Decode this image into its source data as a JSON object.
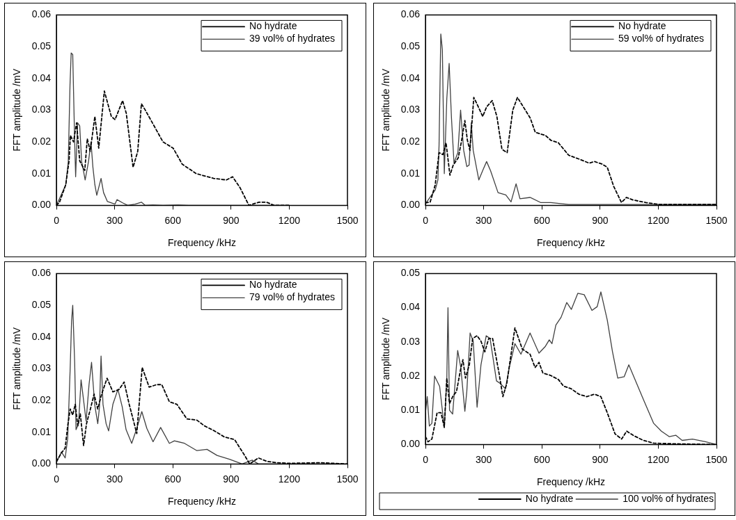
{
  "chart_data": [
    {
      "type": "line",
      "xlabel": "Frequency /kHz",
      "ylabel": "FFT amplitude /mV",
      "xlim": [
        0,
        1500
      ],
      "xticks": [
        0,
        300,
        600,
        900,
        1200,
        1500
      ],
      "ylim": [
        0,
        0.06
      ],
      "yticks": [
        {
          "value": 0,
          "label": "0.00"
        },
        {
          "value": 0.01,
          "label": "0.01"
        },
        {
          "value": 0.02,
          "label": "0.02"
        },
        {
          "value": 0.03,
          "label": "0.03"
        },
        {
          "value": 0.04,
          "label": "0.04"
        },
        {
          "value": 0.05,
          "label": "0.05"
        },
        {
          "value": 0.06,
          "label": "0.06"
        }
      ],
      "grid": false,
      "legend": "top right",
      "marker": "none",
      "series": [
        {
          "name": "No hydrate",
          "color": "#000000",
          "line_style": "dashed",
          "x": [
            0,
            16,
            48,
            65,
            72,
            88,
            104,
            120,
            146,
            159,
            174,
            198,
            218,
            247,
            283,
            302,
            341,
            360,
            395,
            419,
            438,
            458,
            549,
            602,
            648,
            720,
            810,
            876,
            908,
            947,
            992,
            1044,
            1083,
            1122,
            1200
          ],
          "values": [
            0,
            0.001,
            0.0065,
            0.014,
            0.022,
            0.02,
            0.026,
            0.014,
            0.011,
            0.021,
            0.017,
            0.028,
            0.018,
            0.036,
            0.028,
            0.027,
            0.033,
            0.029,
            0.012,
            0.017,
            0.032,
            0.03,
            0.02,
            0.018,
            0.013,
            0.01,
            0.0085,
            0.008,
            0.009,
            0.0055,
            0,
            0.001,
            0.001,
            0,
            0
          ]
        },
        {
          "name": "39 vol% of hydrates",
          "color": "#404040",
          "line_style": "solid",
          "x": [
            0,
            48,
            61,
            70,
            76,
            84,
            94,
            99,
            109,
            120,
            130,
            139,
            148,
            165,
            178,
            188,
            198,
            208,
            230,
            243,
            263,
            302,
            312,
            341,
            367,
            406,
            438,
            458,
            497,
            549,
            628,
            680,
            1200
          ],
          "values": [
            0,
            0.0065,
            0.0137,
            0.038,
            0.048,
            0.0475,
            0.02,
            0.009,
            0.026,
            0.025,
            0.0137,
            0.011,
            0.008,
            0.0137,
            0.02,
            0.012,
            0.0065,
            0.0032,
            0.0085,
            0.004,
            0.0012,
            0.0004,
            0.0018,
            0.0008,
            0,
            0.0004,
            0.001,
            0,
            0.0001,
            0,
            0.0001,
            0,
            0
          ]
        }
      ]
    },
    {
      "type": "line",
      "xlabel": "Frequency /kHz",
      "ylabel": "FFT amplitude /mV",
      "xlim": [
        0,
        1500
      ],
      "xticks": [
        0,
        300,
        600,
        900,
        1200,
        1500
      ],
      "ylim": [
        0,
        0.06
      ],
      "yticks": [
        {
          "value": 0,
          "label": "0.00"
        },
        {
          "value": 0.01,
          "label": "0.01"
        },
        {
          "value": 0.02,
          "label": "0.02"
        },
        {
          "value": 0.03,
          "label": "0.03"
        },
        {
          "value": 0.04,
          "label": "0.04"
        },
        {
          "value": 0.05,
          "label": "0.05"
        },
        {
          "value": 0.06,
          "label": "0.06"
        }
      ],
      "grid": false,
      "legend": "top right",
      "marker": "none",
      "series": [
        {
          "name": "No hydrate",
          "color": "#000000",
          "line_style": "dashed",
          "x": [
            0,
            24,
            50,
            70,
            90,
            106,
            126,
            143,
            169,
            185,
            203,
            216,
            229,
            249,
            265,
            295,
            315,
            344,
            368,
            394,
            421,
            450,
            474,
            540,
            566,
            619,
            646,
            685,
            738,
            791,
            844,
            871,
            910,
            937,
            970,
            1010,
            1036,
            1069,
            1136,
            1202,
            1500
          ],
          "values": [
            0.0008,
            0.001,
            0.0064,
            0.0166,
            0.016,
            0.0197,
            0.0095,
            0.0127,
            0.015,
            0.02,
            0.0267,
            0.0205,
            0.0173,
            0.034,
            0.032,
            0.028,
            0.031,
            0.033,
            0.028,
            0.0177,
            0.0166,
            0.03,
            0.034,
            0.0275,
            0.023,
            0.022,
            0.0205,
            0.0197,
            0.0158,
            0.0146,
            0.0133,
            0.0138,
            0.013,
            0.012,
            0.006,
            0.0009,
            0.0025,
            0.0017,
            0.0009,
            0.0003,
            0.0003
          ]
        },
        {
          "name": "59 vol% of hydrates",
          "color": "#404040",
          "line_style": "solid",
          "x": [
            0,
            50,
            64,
            70,
            79,
            87,
            97,
            110,
            122,
            134,
            147,
            167,
            181,
            197,
            213,
            225,
            236,
            246,
            275,
            295,
            315,
            335,
            374,
            414,
            441,
            467,
            487,
            540,
            593,
            646,
            738,
            1500
          ],
          "values": [
            0.0005,
            0.0048,
            0.008,
            0.019,
            0.054,
            0.049,
            0.01,
            0.0337,
            0.0447,
            0.0275,
            0.0134,
            0.0166,
            0.03,
            0.0173,
            0.0122,
            0.0127,
            0.026,
            0.0173,
            0.008,
            0.011,
            0.0138,
            0.011,
            0.004,
            0.0033,
            0.0011,
            0.0068,
            0.0021,
            0.0025,
            0.0009,
            0.0009,
            0.0003,
            0.0003
          ]
        }
      ]
    },
    {
      "type": "line",
      "xlabel": "Frequency /kHz",
      "ylabel": "FFT amplitude /mV",
      "xlim": [
        0,
        1500
      ],
      "xticks": [
        0,
        300,
        600,
        900,
        1200,
        1500
      ],
      "ylim": [
        0,
        0.06
      ],
      "yticks": [
        {
          "value": 0,
          "label": "0.00"
        },
        {
          "value": 0.01,
          "label": "0.01"
        },
        {
          "value": 0.02,
          "label": "0.02"
        },
        {
          "value": 0.03,
          "label": "0.03"
        },
        {
          "value": 0.04,
          "label": "0.04"
        },
        {
          "value": 0.05,
          "label": "0.05"
        },
        {
          "value": 0.06,
          "label": "0.06"
        }
      ],
      "grid": false,
      "legend": "top right",
      "marker": "none",
      "series": [
        {
          "name": "No hydrate",
          "color": "#000000",
          "line_style": "dashed",
          "x": [
            0,
            26,
            45,
            58,
            71,
            84,
            97,
            110,
            123,
            140,
            155,
            175,
            194,
            213,
            233,
            261,
            291,
            323,
            349,
            375,
            414,
            442,
            478,
            517,
            543,
            582,
            621,
            672,
            724,
            763,
            815,
            866,
            918,
            970,
            996,
            1041,
            1086,
            1138,
            1203,
            1358,
            1500
          ],
          "values": [
            0.0008,
            0.0035,
            0.005,
            0.012,
            0.0173,
            0.0154,
            0.0188,
            0.012,
            0.0158,
            0.0058,
            0.0127,
            0.0173,
            0.022,
            0.0173,
            0.022,
            0.027,
            0.0227,
            0.0235,
            0.0258,
            0.0188,
            0.0096,
            0.0304,
            0.0242,
            0.025,
            0.025,
            0.0196,
            0.0188,
            0.0142,
            0.0138,
            0.012,
            0.0104,
            0.0085,
            0.0077,
            0.0027,
            0,
            0.0019,
            0.0008,
            0.0004,
            0.0002,
            0.0004,
            0
          ]
        },
        {
          "name": "79 vol% of hydrates",
          "color": "#404040",
          "line_style": "solid",
          "x": [
            0,
            26,
            45,
            58,
            71,
            78,
            84,
            94,
            101,
            114,
            127,
            136,
            153,
            168,
            181,
            197,
            213,
            222,
            230,
            240,
            256,
            269,
            291,
            317,
            339,
            359,
            388,
            414,
            440,
            466,
            498,
            537,
            582,
            608,
            660,
            724,
            776,
            828,
            892,
            957,
            1009,
            1041,
            1500
          ],
          "values": [
            0.0004,
            0.0038,
            0.0019,
            0.008,
            0.0304,
            0.045,
            0.05,
            0.032,
            0.0108,
            0.0127,
            0.0265,
            0.022,
            0.0135,
            0.025,
            0.032,
            0.0188,
            0.0127,
            0.018,
            0.034,
            0.0188,
            0.0127,
            0.0104,
            0.0188,
            0.0235,
            0.018,
            0.0108,
            0.0065,
            0.0112,
            0.0165,
            0.0112,
            0.007,
            0.0115,
            0.0065,
            0.0073,
            0.0065,
            0.0042,
            0.0046,
            0.0027,
            0.0015,
            0,
            0.0012,
            0,
            0
          ]
        }
      ]
    },
    {
      "type": "line",
      "xlabel": "Frequency /kHz",
      "ylabel": "FFT amplitude /mV",
      "xlim": [
        0,
        1500
      ],
      "xticks": [
        0,
        300,
        600,
        900,
        1200,
        1500
      ],
      "ylim": [
        0,
        0.05
      ],
      "yticks": [
        {
          "value": 0,
          "label": "0.00"
        },
        {
          "value": 0.01,
          "label": "0.01"
        },
        {
          "value": 0.02,
          "label": "0.02"
        },
        {
          "value": 0.03,
          "label": "0.03"
        },
        {
          "value": 0.04,
          "label": "0.04"
        },
        {
          "value": 0.05,
          "label": "0.05"
        }
      ],
      "grid": false,
      "legend": "bottom",
      "marker": "none",
      "series": [
        {
          "name": "No hydrate",
          "color": "#000000",
          "line_style": "dashed",
          "x": [
            0,
            13,
            33,
            60,
            80,
            97,
            110,
            124,
            140,
            160,
            180,
            193,
            206,
            226,
            243,
            266,
            286,
            306,
            326,
            346,
            379,
            399,
            419,
            461,
            499,
            539,
            565,
            585,
            605,
            645,
            685,
            711,
            751,
            791,
            831,
            871,
            904,
            937,
            977,
            1011,
            1037,
            1070,
            1123,
            1176,
            1283,
            1500
          ],
          "values": [
            0.0023,
            0.0008,
            0.0016,
            0.0093,
            0.0093,
            0.005,
            0.0194,
            0.012,
            0.014,
            0.0155,
            0.0217,
            0.0248,
            0.0194,
            0.0233,
            0.031,
            0.0318,
            0.0302,
            0.0271,
            0.031,
            0.031,
            0.0209,
            0.014,
            0.0178,
            0.0341,
            0.0279,
            0.0264,
            0.0225,
            0.024,
            0.0209,
            0.0202,
            0.019,
            0.0171,
            0.0163,
            0.0147,
            0.014,
            0.0147,
            0.014,
            0.0093,
            0.0031,
            0.0016,
            0.0039,
            0.0027,
            0.0012,
            0.0004,
            0.0002,
            0
          ]
        },
        {
          "name": "100 vol% of hydrates",
          "color": "#404040",
          "line_style": "solid",
          "x": [
            0,
            9,
            20,
            33,
            47,
            73,
            97,
            110,
            116,
            124,
            140,
            166,
            182,
            203,
            213,
            230,
            246,
            266,
            286,
            313,
            333,
            366,
            386,
            412,
            432,
            461,
            492,
            539,
            585,
            618,
            638,
            652,
            672,
            699,
            728,
            752,
            785,
            818,
            858,
            885,
            904,
            937,
            964,
            991,
            1024,
            1048,
            1077,
            1123,
            1176,
            1216,
            1256,
            1290,
            1323,
            1376,
            1443,
            1500
          ],
          "values": [
            0.0093,
            0.014,
            0.0054,
            0.0062,
            0.02,
            0.017,
            0.005,
            0.0194,
            0.04,
            0.01,
            0.0089,
            0.0275,
            0.0225,
            0.0097,
            0.0155,
            0.0326,
            0.0302,
            0.0109,
            0.0233,
            0.0318,
            0.031,
            0.0186,
            0.0178,
            0.0163,
            0.0225,
            0.0295,
            0.0264,
            0.0326,
            0.0267,
            0.0287,
            0.0306,
            0.0295,
            0.0349,
            0.0372,
            0.0415,
            0.0395,
            0.0442,
            0.0438,
            0.0392,
            0.0403,
            0.0446,
            0.0364,
            0.0271,
            0.0194,
            0.0198,
            0.0233,
            0.0194,
            0.0132,
            0.0062,
            0.0039,
            0.0023,
            0.0027,
            0.0012,
            0.0016,
            0.0008,
            0
          ]
        }
      ]
    }
  ]
}
